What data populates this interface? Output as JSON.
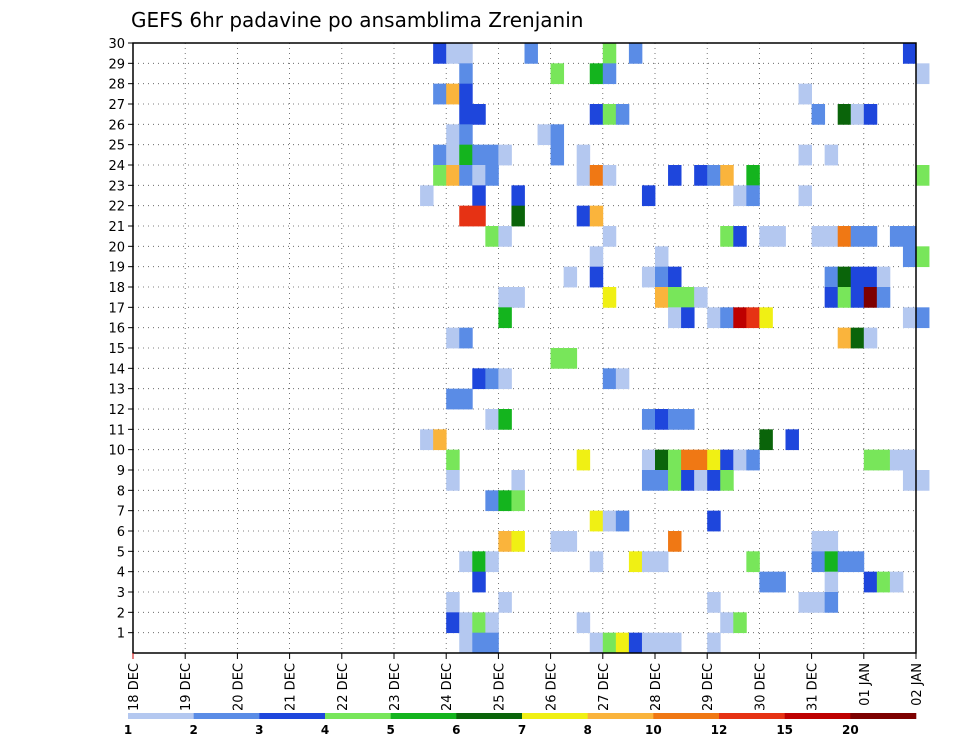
{
  "chart_data": {
    "type": "heatmap",
    "title": "GEFS 6hr padavine po ansamblima Zrenjanin",
    "xlabel": "",
    "ylabel": "",
    "x_ticks": [
      "18 DEC",
      "19 DEC",
      "20 DEC",
      "21 DEC",
      "22 DEC",
      "23 DEC",
      "24 DEC",
      "25 DEC",
      "26 DEC",
      "27 DEC",
      "28 DEC",
      "29 DEC",
      "30 DEC",
      "31 DEC",
      "01 JAN",
      "02 JAN"
    ],
    "y_ticks": [
      "1",
      "2",
      "3",
      "4",
      "5",
      "6",
      "7",
      "8",
      "9",
      "10",
      "11",
      "12",
      "13",
      "14",
      "15",
      "16",
      "17",
      "18",
      "19",
      "20",
      "21",
      "22",
      "23",
      "24",
      "25",
      "26",
      "27",
      "28",
      "29",
      "30"
    ],
    "ylim": [
      0,
      30
    ],
    "time_step_hours": 6,
    "grid": "dotted",
    "legend": {
      "placement": "bottom",
      "levels": [
        "1",
        "2",
        "3",
        "4",
        "5",
        "6",
        "7",
        "8",
        "10",
        "12",
        "15",
        "20"
      ],
      "colors": [
        "#b4c8f0",
        "#5a8ce6",
        "#1e46dc",
        "#78e65a",
        "#14b41e",
        "#0a640a",
        "#f0f014",
        "#fab43c",
        "#f07814",
        "#e63214",
        "#be0000",
        "#7d0000"
      ]
    },
    "cells": [
      {
        "x": "23 DEC 18Z",
        "y": 30,
        "c": 2
      },
      {
        "x": "24 DEC 00Z",
        "y": 30,
        "c": 0
      },
      {
        "x": "24 DEC 06Z",
        "y": 30,
        "c": 0
      },
      {
        "x": "25 DEC 12Z",
        "y": 30,
        "c": 1
      },
      {
        "x": "27 DEC 00Z",
        "y": 30,
        "c": 3
      },
      {
        "x": "27 DEC 12Z",
        "y": 30,
        "c": 1
      },
      {
        "x": "01 JAN 18Z",
        "y": 30,
        "c": 2
      },
      {
        "x": "24 DEC 06Z",
        "y": 29,
        "c": 1
      },
      {
        "x": "26 DEC 00Z",
        "y": 29,
        "c": 3
      },
      {
        "x": "26 DEC 18Z",
        "y": 29,
        "c": 4
      },
      {
        "x": "27 DEC 00Z",
        "y": 29,
        "c": 1
      },
      {
        "x": "02 JAN 00Z",
        "y": 29,
        "c": 0
      },
      {
        "x": "23 DEC 18Z",
        "y": 28,
        "c": 1
      },
      {
        "x": "24 DEC 00Z",
        "y": 28,
        "c": 7
      },
      {
        "x": "24 DEC 06Z",
        "y": 28,
        "c": 2
      },
      {
        "x": "30 DEC 18Z",
        "y": 28,
        "c": 0
      },
      {
        "x": "24 DEC 06Z",
        "y": 27,
        "c": 2
      },
      {
        "x": "24 DEC 12Z",
        "y": 27,
        "c": 2
      },
      {
        "x": "26 DEC 18Z",
        "y": 27,
        "c": 2
      },
      {
        "x": "27 DEC 00Z",
        "y": 27,
        "c": 3
      },
      {
        "x": "27 DEC 06Z",
        "y": 27,
        "c": 1
      },
      {
        "x": "31 DEC 00Z",
        "y": 27,
        "c": 1
      },
      {
        "x": "31 DEC 12Z",
        "y": 27,
        "c": 5
      },
      {
        "x": "31 DEC 18Z",
        "y": 27,
        "c": 0
      },
      {
        "x": "01 JAN 00Z",
        "y": 27,
        "c": 2
      },
      {
        "x": "24 DEC 00Z",
        "y": 26,
        "c": 0
      },
      {
        "x": "24 DEC 06Z",
        "y": 26,
        "c": 1
      },
      {
        "x": "25 DEC 18Z",
        "y": 26,
        "c": 0
      },
      {
        "x": "26 DEC 00Z",
        "y": 26,
        "c": 1
      },
      {
        "x": "23 DEC 18Z",
        "y": 25,
        "c": 1
      },
      {
        "x": "24 DEC 00Z",
        "y": 25,
        "c": 0
      },
      {
        "x": "24 DEC 06Z",
        "y": 25,
        "c": 4
      },
      {
        "x": "24 DEC 12Z",
        "y": 25,
        "c": 1
      },
      {
        "x": "24 DEC 18Z",
        "y": 25,
        "c": 1
      },
      {
        "x": "25 DEC 00Z",
        "y": 25,
        "c": 0
      },
      {
        "x": "26 DEC 00Z",
        "y": 25,
        "c": 1
      },
      {
        "x": "26 DEC 12Z",
        "y": 25,
        "c": 0
      },
      {
        "x": "30 DEC 18Z",
        "y": 25,
        "c": 0
      },
      {
        "x": "31 DEC 06Z",
        "y": 25,
        "c": 0
      },
      {
        "x": "23 DEC 18Z",
        "y": 24,
        "c": 3
      },
      {
        "x": "24 DEC 00Z",
        "y": 24,
        "c": 7
      },
      {
        "x": "24 DEC 06Z",
        "y": 24,
        "c": 1
      },
      {
        "x": "24 DEC 12Z",
        "y": 24,
        "c": 0
      },
      {
        "x": "24 DEC 18Z",
        "y": 24,
        "c": 1
      },
      {
        "x": "26 DEC 12Z",
        "y": 24,
        "c": 0
      },
      {
        "x": "26 DEC 18Z",
        "y": 24,
        "c": 8
      },
      {
        "x": "27 DEC 00Z",
        "y": 24,
        "c": 0
      },
      {
        "x": "28 DEC 06Z",
        "y": 24,
        "c": 2
      },
      {
        "x": "28 DEC 18Z",
        "y": 24,
        "c": 2
      },
      {
        "x": "29 DEC 00Z",
        "y": 24,
        "c": 1
      },
      {
        "x": "29 DEC 06Z",
        "y": 24,
        "c": 7
      },
      {
        "x": "29 DEC 18Z",
        "y": 24,
        "c": 4
      },
      {
        "x": "02 JAN 00Z",
        "y": 24,
        "c": 3
      },
      {
        "x": "23 DEC 12Z",
        "y": 23,
        "c": 0
      },
      {
        "x": "24 DEC 12Z",
        "y": 23,
        "c": 2
      },
      {
        "x": "25 DEC 06Z",
        "y": 23,
        "c": 2
      },
      {
        "x": "27 DEC 18Z",
        "y": 23,
        "c": 2
      },
      {
        "x": "29 DEC 12Z",
        "y": 23,
        "c": 0
      },
      {
        "x": "29 DEC 18Z",
        "y": 23,
        "c": 1
      },
      {
        "x": "30 DEC 18Z",
        "y": 23,
        "c": 0
      },
      {
        "x": "24 DEC 06Z",
        "y": 22,
        "c": 9
      },
      {
        "x": "24 DEC 12Z",
        "y": 22,
        "c": 9
      },
      {
        "x": "25 DEC 06Z",
        "y": 22,
        "c": 5
      },
      {
        "x": "26 DEC 12Z",
        "y": 22,
        "c": 2
      },
      {
        "x": "26 DEC 18Z",
        "y": 22,
        "c": 7
      },
      {
        "x": "24 DEC 18Z",
        "y": 21,
        "c": 3
      },
      {
        "x": "25 DEC 00Z",
        "y": 21,
        "c": 0
      },
      {
        "x": "27 DEC 00Z",
        "y": 21,
        "c": 0
      },
      {
        "x": "29 DEC 06Z",
        "y": 21,
        "c": 3
      },
      {
        "x": "29 DEC 12Z",
        "y": 21,
        "c": 2
      },
      {
        "x": "30 DEC 00Z",
        "y": 21,
        "c": 0
      },
      {
        "x": "30 DEC 06Z",
        "y": 21,
        "c": 0
      },
      {
        "x": "31 DEC 00Z",
        "y": 21,
        "c": 0
      },
      {
        "x": "31 DEC 06Z",
        "y": 21,
        "c": 0
      },
      {
        "x": "31 DEC 12Z",
        "y": 21,
        "c": 8
      },
      {
        "x": "31 DEC 18Z",
        "y": 21,
        "c": 1
      },
      {
        "x": "01 JAN 00Z",
        "y": 21,
        "c": 1
      },
      {
        "x": "01 JAN 12Z",
        "y": 21,
        "c": 1
      },
      {
        "x": "01 JAN 18Z",
        "y": 21,
        "c": 1
      },
      {
        "x": "26 DEC 18Z",
        "y": 20,
        "c": 0
      },
      {
        "x": "28 DEC 00Z",
        "y": 20,
        "c": 0
      },
      {
        "x": "01 JAN 18Z",
        "y": 20,
        "c": 1
      },
      {
        "x": "02 JAN 00Z",
        "y": 20,
        "c": 3
      },
      {
        "x": "26 DEC 06Z",
        "y": 19,
        "c": 0
      },
      {
        "x": "26 DEC 18Z",
        "y": 19,
        "c": 2
      },
      {
        "x": "27 DEC 18Z",
        "y": 19,
        "c": 0
      },
      {
        "x": "28 DEC 00Z",
        "y": 19,
        "c": 1
      },
      {
        "x": "28 DEC 06Z",
        "y": 19,
        "c": 2
      },
      {
        "x": "31 DEC 06Z",
        "y": 19,
        "c": 1
      },
      {
        "x": "31 DEC 12Z",
        "y": 19,
        "c": 5
      },
      {
        "x": "31 DEC 18Z",
        "y": 19,
        "c": 2
      },
      {
        "x": "01 JAN 00Z",
        "y": 19,
        "c": 2
      },
      {
        "x": "01 JAN 06Z",
        "y": 19,
        "c": 0
      },
      {
        "x": "25 DEC 00Z",
        "y": 18,
        "c": 0
      },
      {
        "x": "25 DEC 06Z",
        "y": 18,
        "c": 0
      },
      {
        "x": "27 DEC 00Z",
        "y": 18,
        "c": 6
      },
      {
        "x": "28 DEC 00Z",
        "y": 18,
        "c": 7
      },
      {
        "x": "28 DEC 06Z",
        "y": 18,
        "c": 3
      },
      {
        "x": "28 DEC 12Z",
        "y": 18,
        "c": 3
      },
      {
        "x": "28 DEC 18Z",
        "y": 18,
        "c": 0
      },
      {
        "x": "31 DEC 06Z",
        "y": 18,
        "c": 2
      },
      {
        "x": "31 DEC 12Z",
        "y": 18,
        "c": 3
      },
      {
        "x": "31 DEC 18Z",
        "y": 18,
        "c": 2
      },
      {
        "x": "01 JAN 00Z",
        "y": 18,
        "c": 11
      },
      {
        "x": "01 JAN 06Z",
        "y": 18,
        "c": 1
      },
      {
        "x": "25 DEC 00Z",
        "y": 17,
        "c": 4
      },
      {
        "x": "28 DEC 06Z",
        "y": 17,
        "c": 0
      },
      {
        "x": "28 DEC 12Z",
        "y": 17,
        "c": 2
      },
      {
        "x": "29 DEC 00Z",
        "y": 17,
        "c": 0
      },
      {
        "x": "29 DEC 06Z",
        "y": 17,
        "c": 1
      },
      {
        "x": "29 DEC 12Z",
        "y": 17,
        "c": 10
      },
      {
        "x": "29 DEC 18Z",
        "y": 17,
        "c": 9
      },
      {
        "x": "30 DEC 00Z",
        "y": 17,
        "c": 6
      },
      {
        "x": "01 JAN 18Z",
        "y": 17,
        "c": 0
      },
      {
        "x": "02 JAN 00Z",
        "y": 17,
        "c": 1
      },
      {
        "x": "24 DEC 00Z",
        "y": 16,
        "c": 0
      },
      {
        "x": "24 DEC 06Z",
        "y": 16,
        "c": 1
      },
      {
        "x": "31 DEC 12Z",
        "y": 16,
        "c": 7
      },
      {
        "x": "31 DEC 18Z",
        "y": 16,
        "c": 5
      },
      {
        "x": "01 JAN 00Z",
        "y": 16,
        "c": 0
      },
      {
        "x": "26 DEC 00Z",
        "y": 15,
        "c": 3
      },
      {
        "x": "26 DEC 06Z",
        "y": 15,
        "c": 3
      },
      {
        "x": "24 DEC 12Z",
        "y": 14,
        "c": 2
      },
      {
        "x": "24 DEC 18Z",
        "y": 14,
        "c": 1
      },
      {
        "x": "25 DEC 00Z",
        "y": 14,
        "c": 0
      },
      {
        "x": "27 DEC 00Z",
        "y": 14,
        "c": 1
      },
      {
        "x": "27 DEC 06Z",
        "y": 14,
        "c": 0
      },
      {
        "x": "24 DEC 00Z",
        "y": 13,
        "c": 1
      },
      {
        "x": "24 DEC 06Z",
        "y": 13,
        "c": 1
      },
      {
        "x": "24 DEC 18Z",
        "y": 12,
        "c": 0
      },
      {
        "x": "25 DEC 00Z",
        "y": 12,
        "c": 4
      },
      {
        "x": "27 DEC 18Z",
        "y": 12,
        "c": 1
      },
      {
        "x": "28 DEC 00Z",
        "y": 12,
        "c": 2
      },
      {
        "x": "28 DEC 06Z",
        "y": 12,
        "c": 1
      },
      {
        "x": "28 DEC 12Z",
        "y": 12,
        "c": 1
      },
      {
        "x": "23 DEC 12Z",
        "y": 11,
        "c": 0
      },
      {
        "x": "23 DEC 18Z",
        "y": 11,
        "c": 7
      },
      {
        "x": "30 DEC 00Z",
        "y": 11,
        "c": 5
      },
      {
        "x": "30 DEC 12Z",
        "y": 11,
        "c": 2
      },
      {
        "x": "24 DEC 00Z",
        "y": 10,
        "c": 3
      },
      {
        "x": "26 DEC 12Z",
        "y": 10,
        "c": 6
      },
      {
        "x": "27 DEC 18Z",
        "y": 10,
        "c": 0
      },
      {
        "x": "28 DEC 00Z",
        "y": 10,
        "c": 5
      },
      {
        "x": "28 DEC 06Z",
        "y": 10,
        "c": 3
      },
      {
        "x": "28 DEC 12Z",
        "y": 10,
        "c": 8
      },
      {
        "x": "28 DEC 18Z",
        "y": 10,
        "c": 8
      },
      {
        "x": "29 DEC 00Z",
        "y": 10,
        "c": 6
      },
      {
        "x": "29 DEC 06Z",
        "y": 10,
        "c": 2
      },
      {
        "x": "29 DEC 12Z",
        "y": 10,
        "c": 0
      },
      {
        "x": "29 DEC 18Z",
        "y": 10,
        "c": 1
      },
      {
        "x": "01 JAN 00Z",
        "y": 10,
        "c": 3
      },
      {
        "x": "01 JAN 06Z",
        "y": 10,
        "c": 3
      },
      {
        "x": "01 JAN 12Z",
        "y": 10,
        "c": 0
      },
      {
        "x": "01 JAN 18Z",
        "y": 10,
        "c": 0
      },
      {
        "x": "24 DEC 00Z",
        "y": 9,
        "c": 0
      },
      {
        "x": "25 DEC 06Z",
        "y": 9,
        "c": 0
      },
      {
        "x": "27 DEC 18Z",
        "y": 9,
        "c": 1
      },
      {
        "x": "28 DEC 00Z",
        "y": 9,
        "c": 1
      },
      {
        "x": "28 DEC 06Z",
        "y": 9,
        "c": 3
      },
      {
        "x": "28 DEC 12Z",
        "y": 9,
        "c": 2
      },
      {
        "x": "28 DEC 18Z",
        "y": 9,
        "c": 0
      },
      {
        "x": "29 DEC 00Z",
        "y": 9,
        "c": 2
      },
      {
        "x": "29 DEC 06Z",
        "y": 9,
        "c": 3
      },
      {
        "x": "01 JAN 18Z",
        "y": 9,
        "c": 0
      },
      {
        "x": "02 JAN 00Z",
        "y": 9,
        "c": 0
      },
      {
        "x": "24 DEC 18Z",
        "y": 8,
        "c": 1
      },
      {
        "x": "25 DEC 00Z",
        "y": 8,
        "c": 4
      },
      {
        "x": "25 DEC 06Z",
        "y": 8,
        "c": 3
      },
      {
        "x": "26 DEC 18Z",
        "y": 7,
        "c": 6
      },
      {
        "x": "27 DEC 00Z",
        "y": 7,
        "c": 0
      },
      {
        "x": "27 DEC 06Z",
        "y": 7,
        "c": 1
      },
      {
        "x": "29 DEC 00Z",
        "y": 7,
        "c": 2
      },
      {
        "x": "25 DEC 00Z",
        "y": 6,
        "c": 7
      },
      {
        "x": "25 DEC 06Z",
        "y": 6,
        "c": 6
      },
      {
        "x": "26 DEC 00Z",
        "y": 6,
        "c": 0
      },
      {
        "x": "26 DEC 06Z",
        "y": 6,
        "c": 0
      },
      {
        "x": "28 DEC 06Z",
        "y": 6,
        "c": 8
      },
      {
        "x": "31 DEC 00Z",
        "y": 6,
        "c": 0
      },
      {
        "x": "31 DEC 06Z",
        "y": 6,
        "c": 0
      },
      {
        "x": "24 DEC 06Z",
        "y": 5,
        "c": 0
      },
      {
        "x": "24 DEC 12Z",
        "y": 5,
        "c": 4
      },
      {
        "x": "24 DEC 18Z",
        "y": 5,
        "c": 0
      },
      {
        "x": "26 DEC 18Z",
        "y": 5,
        "c": 0
      },
      {
        "x": "27 DEC 12Z",
        "y": 5,
        "c": 6
      },
      {
        "x": "27 DEC 18Z",
        "y": 5,
        "c": 0
      },
      {
        "x": "28 DEC 00Z",
        "y": 5,
        "c": 0
      },
      {
        "x": "29 DEC 18Z",
        "y": 5,
        "c": 3
      },
      {
        "x": "31 DEC 00Z",
        "y": 5,
        "c": 1
      },
      {
        "x": "31 DEC 06Z",
        "y": 5,
        "c": 4
      },
      {
        "x": "31 DEC 12Z",
        "y": 5,
        "c": 1
      },
      {
        "x": "31 DEC 18Z",
        "y": 5,
        "c": 1
      },
      {
        "x": "24 DEC 12Z",
        "y": 4,
        "c": 2
      },
      {
        "x": "30 DEC 00Z",
        "y": 4,
        "c": 1
      },
      {
        "x": "30 DEC 06Z",
        "y": 4,
        "c": 1
      },
      {
        "x": "31 DEC 06Z",
        "y": 4,
        "c": 0
      },
      {
        "x": "01 JAN 00Z",
        "y": 4,
        "c": 2
      },
      {
        "x": "01 JAN 06Z",
        "y": 4,
        "c": 3
      },
      {
        "x": "01 JAN 12Z",
        "y": 4,
        "c": 0
      },
      {
        "x": "24 DEC 00Z",
        "y": 3,
        "c": 0
      },
      {
        "x": "25 DEC 00Z",
        "y": 3,
        "c": 0
      },
      {
        "x": "29 DEC 00Z",
        "y": 3,
        "c": 0
      },
      {
        "x": "30 DEC 18Z",
        "y": 3,
        "c": 0
      },
      {
        "x": "31 DEC 00Z",
        "y": 3,
        "c": 0
      },
      {
        "x": "31 DEC 06Z",
        "y": 3,
        "c": 1
      },
      {
        "x": "24 DEC 00Z",
        "y": 2,
        "c": 2
      },
      {
        "x": "24 DEC 06Z",
        "y": 2,
        "c": 0
      },
      {
        "x": "24 DEC 12Z",
        "y": 2,
        "c": 3
      },
      {
        "x": "24 DEC 18Z",
        "y": 2,
        "c": 0
      },
      {
        "x": "26 DEC 12Z",
        "y": 2,
        "c": 0
      },
      {
        "x": "29 DEC 06Z",
        "y": 2,
        "c": 0
      },
      {
        "x": "29 DEC 12Z",
        "y": 2,
        "c": 3
      },
      {
        "x": "24 DEC 06Z",
        "y": 1,
        "c": 0
      },
      {
        "x": "24 DEC 12Z",
        "y": 1,
        "c": 1
      },
      {
        "x": "24 DEC 18Z",
        "y": 1,
        "c": 1
      },
      {
        "x": "26 DEC 18Z",
        "y": 1,
        "c": 0
      },
      {
        "x": "27 DEC 00Z",
        "y": 1,
        "c": 3
      },
      {
        "x": "27 DEC 06Z",
        "y": 1,
        "c": 6
      },
      {
        "x": "27 DEC 12Z",
        "y": 1,
        "c": 2
      },
      {
        "x": "27 DEC 18Z",
        "y": 1,
        "c": 0
      },
      {
        "x": "28 DEC 00Z",
        "y": 1,
        "c": 0
      },
      {
        "x": "28 DEC 06Z",
        "y": 1,
        "c": 0
      },
      {
        "x": "29 DEC 00Z",
        "y": 1,
        "c": 0
      }
    ]
  }
}
